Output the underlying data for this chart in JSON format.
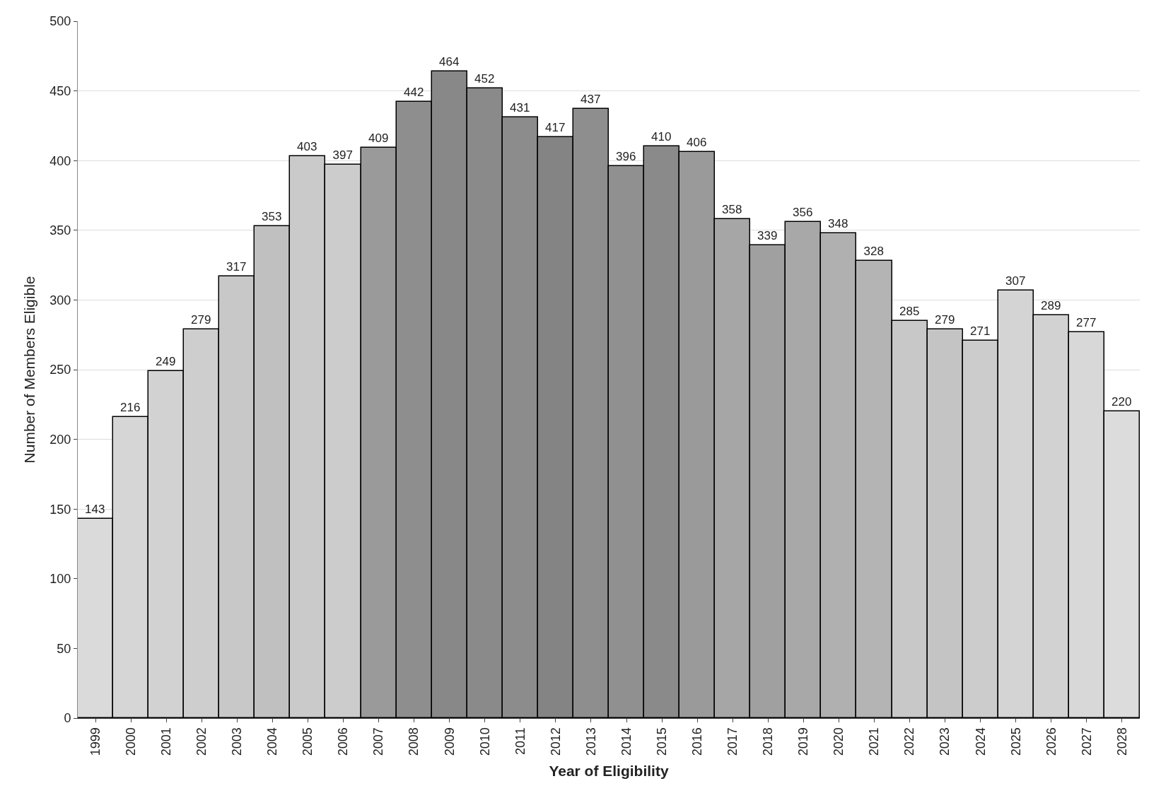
{
  "chart_data": {
    "type": "bar",
    "xlabel": "Year of Eligibility",
    "ylabel": "Number of Members Eligible",
    "categories": [
      "1999",
      "2000",
      "2001",
      "2002",
      "2003",
      "2004",
      "2005",
      "2006",
      "2007",
      "2008",
      "2009",
      "2010",
      "2011",
      "2012",
      "2013",
      "2014",
      "2015",
      "2016",
      "2017",
      "2018",
      "2019",
      "2020",
      "2021",
      "2022",
      "2023",
      "2024",
      "2025",
      "2026",
      "2027",
      "2028"
    ],
    "values": [
      143,
      216,
      249,
      279,
      317,
      353,
      403,
      397,
      409,
      442,
      464,
      452,
      431,
      417,
      437,
      396,
      410,
      406,
      358,
      339,
      356,
      348,
      328,
      285,
      279,
      271,
      307,
      289,
      277,
      220
    ],
    "colors": [
      "#dadada",
      "#d6d6d6",
      "#d2d2d2",
      "#cecece",
      "#c8c8c8",
      "#c0c0c0",
      "#cacaca",
      "#cccccc",
      "#9a9a9a",
      "#8e8e8e",
      "#888888",
      "#8a8a8a",
      "#8c8c8c",
      "#848484",
      "#8e8e8e",
      "#909090",
      "#8a8a8a",
      "#9a9a9a",
      "#a6a6a6",
      "#a0a0a0",
      "#a8a8a8",
      "#b0b0b0",
      "#b4b4b4",
      "#c8c8c8",
      "#c4c4c4",
      "#cccccc",
      "#d4d4d4",
      "#d2d2d2",
      "#d8d8d8",
      "#dcdcdc"
    ],
    "ylim": [
      0,
      500
    ],
    "yticks": [
      0,
      50,
      100,
      150,
      200,
      250,
      300,
      350,
      400,
      450,
      500
    ],
    "grid": "y",
    "data_labels": true
  }
}
